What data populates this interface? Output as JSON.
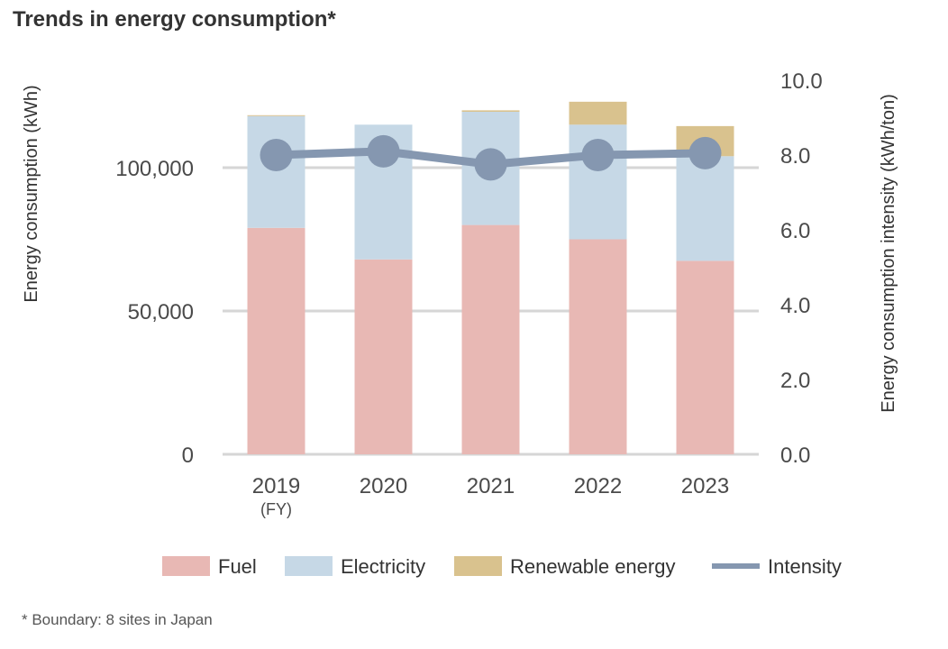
{
  "title": "Trends in energy consumption*",
  "footnote": "* Boundary: 8 sites in Japan",
  "chart_data": {
    "type": "bar",
    "stacked": true,
    "title": "Trends in energy consumption*",
    "categories": [
      "2019",
      "2020",
      "2021",
      "2022",
      "2023"
    ],
    "category_sublabel": "(FY)",
    "ylabel": "Energy consumption (kWh)",
    "y2label": "Energy consumption intensity (kWh/ton)",
    "ylim": [
      0,
      130000
    ],
    "y2lim": [
      0,
      10.0
    ],
    "yticks": [
      "0",
      "50,000",
      "100,000"
    ],
    "y2ticks": [
      "0.0",
      "2.0",
      "4.0",
      "6.0",
      "8.0",
      "10.0"
    ],
    "grid": true,
    "legend_position": "bottom",
    "series": [
      {
        "name": "Fuel",
        "type": "bar",
        "axis": "left",
        "color": "#e8b8b4",
        "values": [
          79000,
          68000,
          80000,
          75000,
          67500
        ]
      },
      {
        "name": "Electricity",
        "type": "bar",
        "axis": "left",
        "color": "#c6d8e6",
        "values": [
          39000,
          47000,
          39500,
          40000,
          36500
        ]
      },
      {
        "name": "Renewable energy",
        "type": "bar",
        "axis": "left",
        "color": "#d9c28e",
        "values": [
          300,
          0,
          500,
          8000,
          10500
        ]
      },
      {
        "name": "Intensity",
        "type": "line",
        "axis": "right",
        "color": "#8597b0",
        "values": [
          8.0,
          8.1,
          7.75,
          8.0,
          8.05
        ]
      }
    ]
  }
}
